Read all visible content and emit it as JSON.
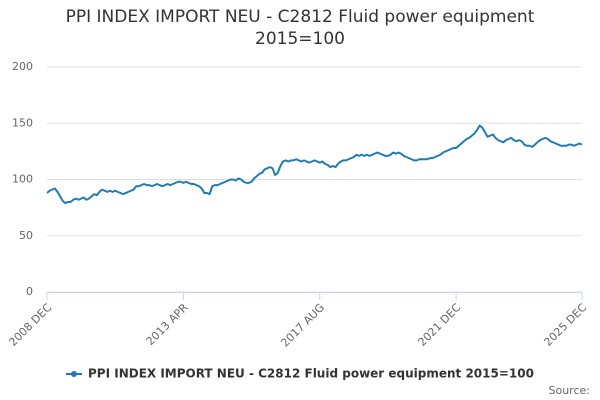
{
  "chart_data": {
    "type": "line",
    "title": "PPI INDEX IMPORT NEU - C2812 Fluid power equipment 2015=100",
    "source": "Source:",
    "categories": [
      "2008 DEC",
      null,
      null,
      null,
      null,
      null,
      null,
      null,
      null,
      null,
      null,
      null,
      null,
      null,
      null,
      null,
      null,
      null,
      null,
      null,
      null,
      null,
      null,
      null,
      null,
      null,
      null,
      null,
      null,
      null,
      null,
      null,
      null,
      null,
      null,
      null,
      null,
      null,
      null,
      null,
      null,
      null,
      null,
      null,
      null,
      null,
      null,
      null,
      null,
      null,
      null,
      null,
      "2013 APR",
      null,
      null,
      null,
      null,
      null,
      null,
      null,
      null,
      null,
      null,
      null,
      null,
      null,
      null,
      null,
      null,
      null,
      null,
      null,
      null,
      null,
      null,
      null,
      null,
      null,
      null,
      null,
      null,
      null,
      null,
      null,
      null,
      null,
      null,
      null,
      null,
      null,
      null,
      null,
      null,
      null,
      null,
      null,
      null,
      null,
      null,
      null,
      null,
      null,
      null,
      null,
      "2017 AUG",
      null,
      null,
      null,
      null,
      null,
      null,
      null,
      null,
      null,
      null,
      null,
      null,
      null,
      null,
      null,
      null,
      null,
      null,
      null,
      null,
      null,
      null,
      null,
      null,
      null,
      null,
      null,
      null,
      null,
      null,
      null,
      null,
      null,
      null,
      null,
      null,
      null,
      null,
      null,
      null,
      null,
      null,
      null,
      null,
      null,
      null,
      null,
      null,
      null,
      null,
      null,
      "2021 DEC",
      null,
      null,
      null,
      null,
      null,
      null,
      null,
      null,
      null,
      null,
      null,
      null,
      null,
      null,
      null,
      null,
      null,
      null,
      null,
      null,
      null,
      null,
      null,
      null,
      null,
      null,
      null,
      null,
      null,
      null,
      null,
      null,
      null,
      null,
      null,
      null,
      null,
      null,
      null,
      null,
      null,
      null,
      null,
      null,
      null,
      null,
      null,
      "2025 DEC"
    ],
    "series": [
      {
        "name": "PPI INDEX IMPORT NEU - C2812 Fluid power equipment 2015=100",
        "color": "#1f7ab5",
        "values": [
          88,
          90,
          91,
          92,
          89,
          85,
          81,
          79,
          80,
          80,
          82,
          83,
          82,
          83,
          84,
          82,
          83,
          85,
          87,
          86,
          89,
          91,
          90,
          89,
          90,
          89,
          90,
          89,
          88,
          87,
          88,
          89,
          90,
          91,
          94,
          94,
          95,
          96,
          95,
          95,
          94,
          95,
          96,
          95,
          94,
          95,
          96,
          95,
          96,
          97,
          98,
          98,
          97,
          98,
          97,
          96,
          96,
          95,
          94,
          92,
          88,
          88,
          87,
          94,
          95,
          95,
          96,
          97,
          98,
          99,
          100,
          100,
          99,
          101,
          100,
          98,
          97,
          97,
          98,
          101,
          103,
          105,
          106,
          109,
          110,
          111,
          110,
          104,
          106,
          112,
          116,
          117,
          116,
          117,
          117,
          118,
          117,
          116,
          117,
          116,
          115,
          116,
          117,
          116,
          115,
          116,
          114,
          113,
          111,
          112,
          111,
          114,
          116,
          117,
          117,
          118,
          119,
          120,
          122,
          121,
          122,
          121,
          122,
          121,
          122,
          123,
          124,
          123,
          122,
          121,
          121,
          122,
          124,
          123,
          124,
          123,
          121,
          120,
          119,
          118,
          117,
          117,
          118,
          118,
          118,
          118,
          119,
          119,
          120,
          121,
          122,
          124,
          125,
          126,
          127,
          128,
          128,
          130,
          132,
          134,
          136,
          137,
          139,
          141,
          144,
          148,
          146,
          142,
          138,
          139,
          140,
          137,
          135,
          134,
          133,
          135,
          136,
          137,
          135,
          134,
          135,
          134,
          131,
          130,
          130,
          129,
          131,
          133,
          135,
          136,
          137,
          136,
          134,
          133,
          132,
          131,
          130,
          130,
          130,
          131,
          131,
          130,
          131,
          132,
          131
        ]
      }
    ],
    "ylim": [
      0,
      200
    ],
    "yticks": [
      0,
      50,
      100,
      150,
      200
    ],
    "grid": true
  }
}
